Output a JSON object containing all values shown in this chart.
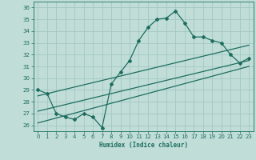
{
  "xlabel": "Humidex (Indice chaleur)",
  "xlim": [
    -0.5,
    23.5
  ],
  "ylim": [
    25.5,
    36.5
  ],
  "xticks": [
    0,
    1,
    2,
    3,
    4,
    5,
    6,
    7,
    8,
    9,
    10,
    11,
    12,
    13,
    14,
    15,
    16,
    17,
    18,
    19,
    20,
    21,
    22,
    23
  ],
  "yticks": [
    26,
    27,
    28,
    29,
    30,
    31,
    32,
    33,
    34,
    35,
    36
  ],
  "bg_color": "#c0ddd8",
  "line_color": "#1e6e60",
  "grid_color": "#a0c4be",
  "line1_x": [
    0,
    1,
    2,
    3,
    4,
    5,
    6,
    7,
    8,
    9,
    10,
    11,
    12,
    13,
    14,
    15,
    16,
    17,
    18,
    19,
    20,
    21,
    22,
    23
  ],
  "line1_y": [
    29.0,
    28.7,
    27.0,
    26.7,
    26.5,
    27.0,
    26.7,
    25.8,
    29.5,
    30.5,
    31.5,
    33.2,
    34.3,
    35.0,
    35.1,
    35.7,
    34.7,
    33.5,
    33.5,
    33.2,
    33.0,
    32.0,
    31.3,
    31.7
  ],
  "line2_x": [
    0,
    23
  ],
  "line2_y": [
    27.2,
    31.5
  ],
  "line3_x": [
    0,
    23
  ],
  "line3_y": [
    28.5,
    32.8
  ],
  "line4_x": [
    0,
    23
  ],
  "line4_y": [
    26.2,
    31.0
  ]
}
